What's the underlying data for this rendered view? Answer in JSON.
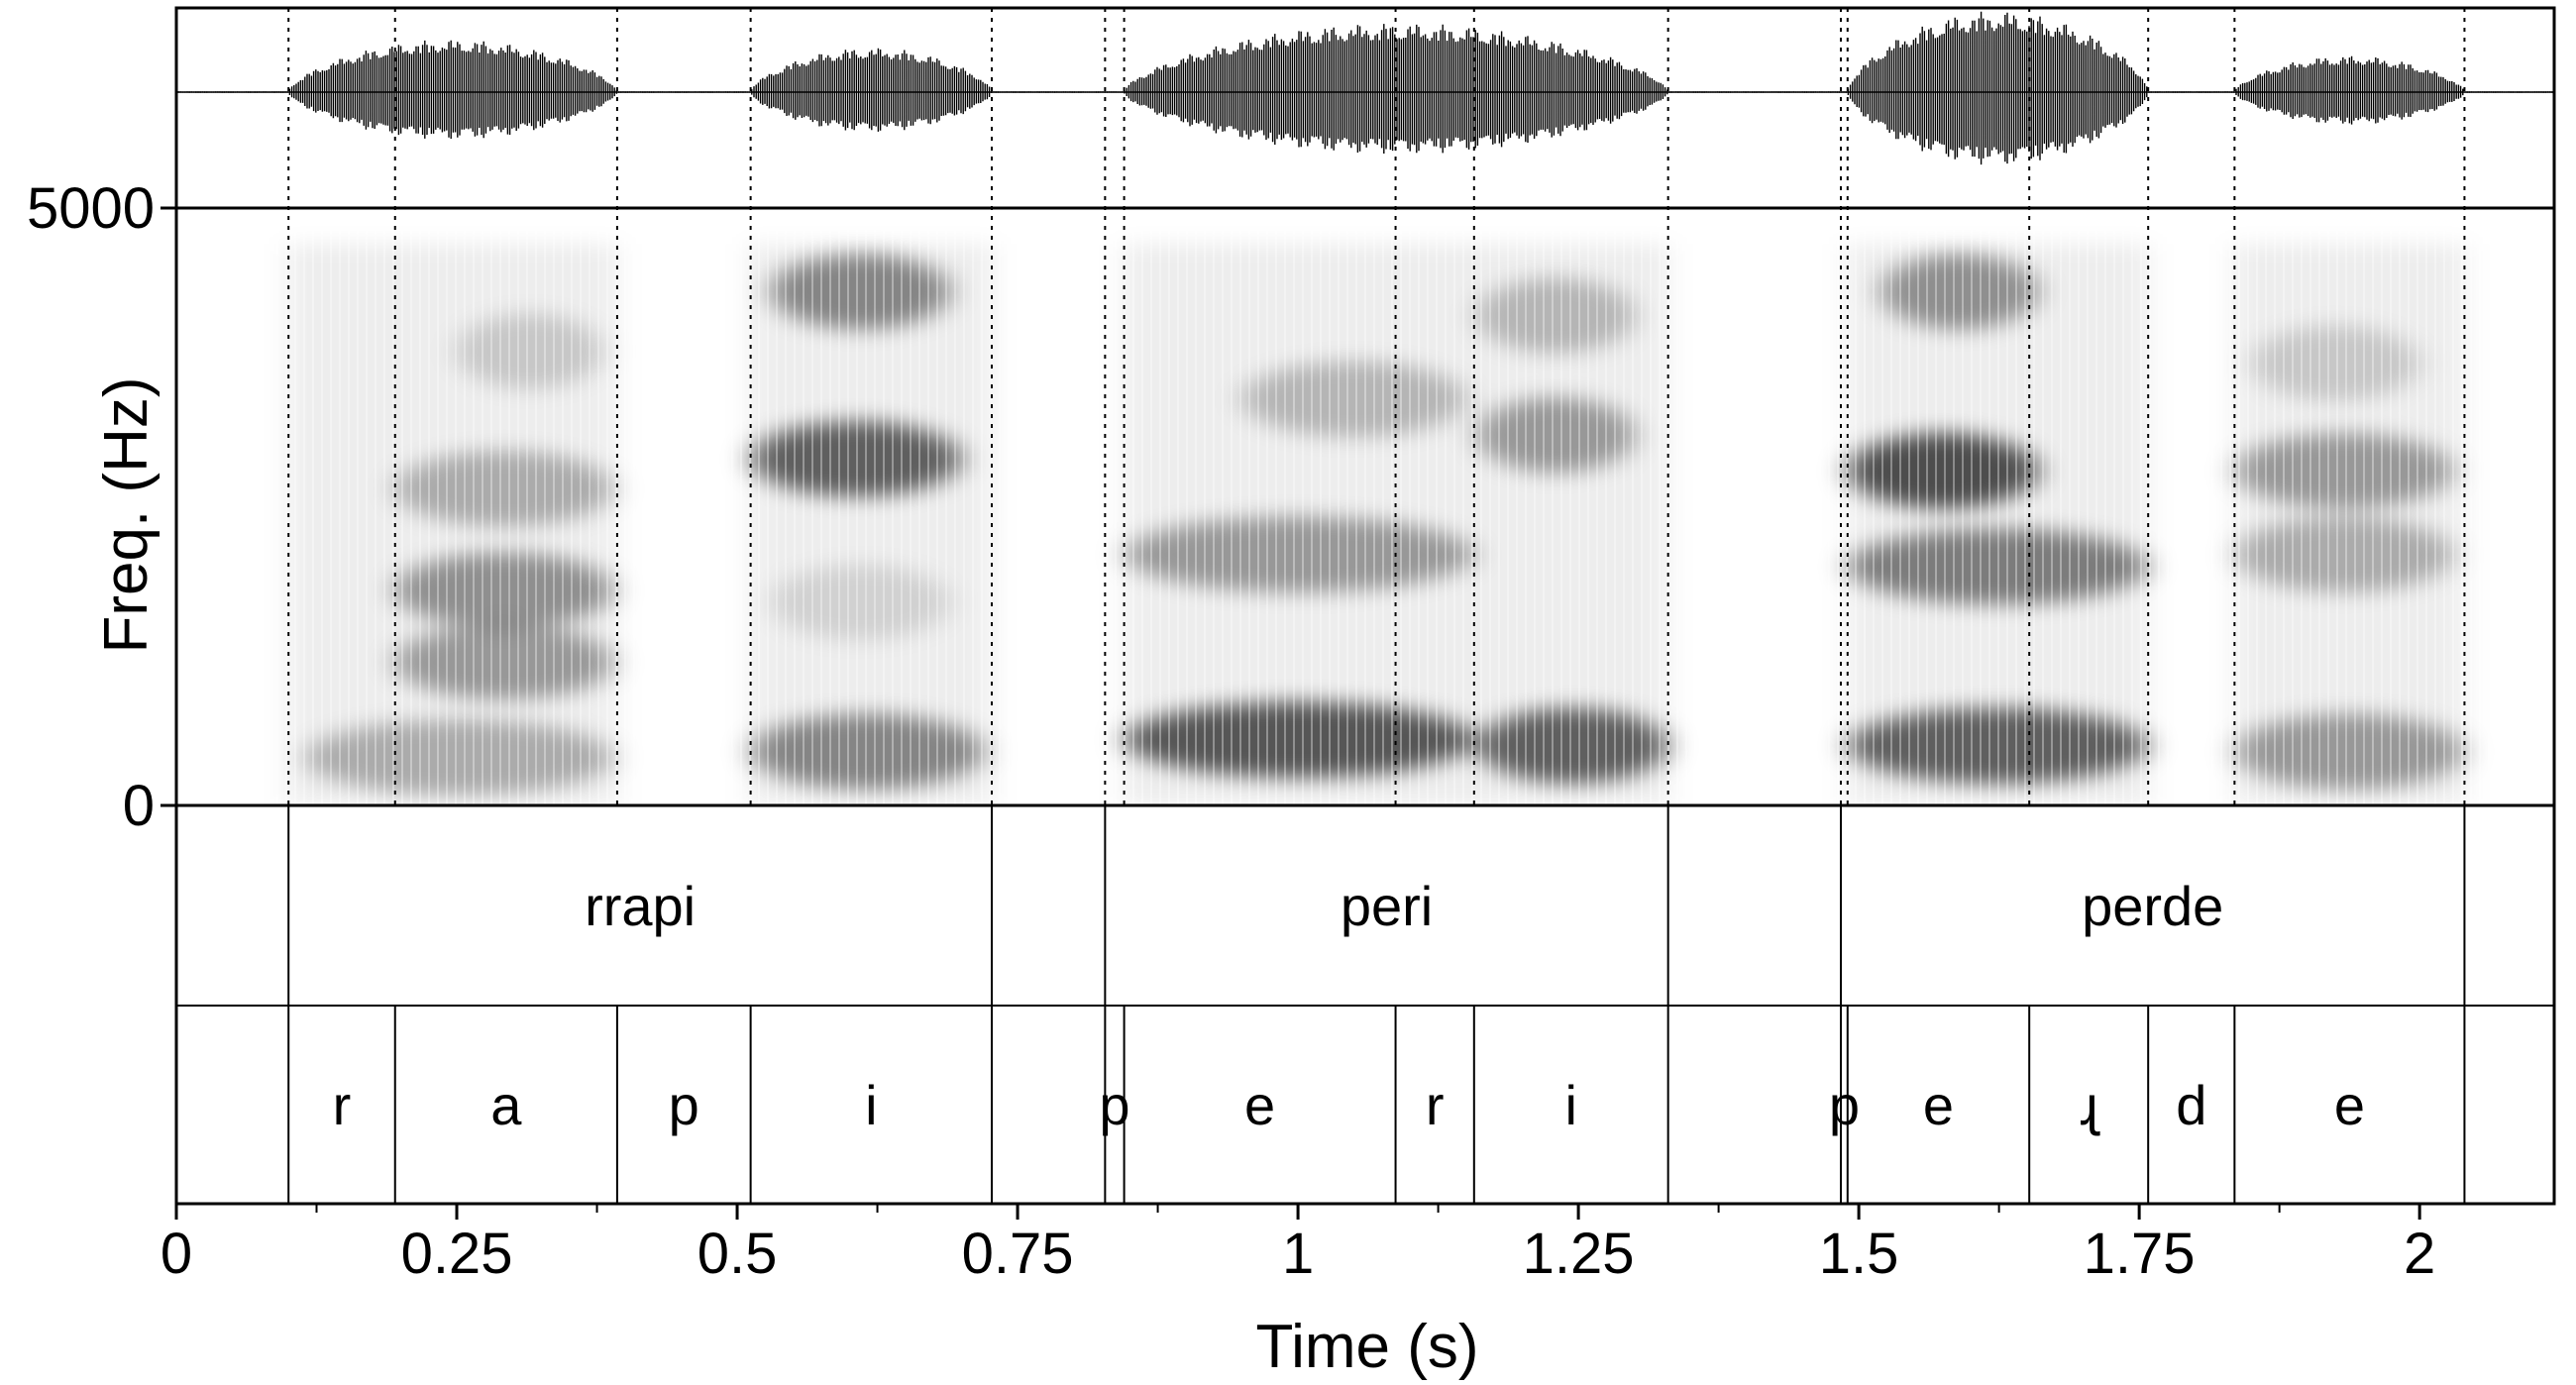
{
  "chart_data": {
    "type": "spectrogram",
    "xlabel": "Time (s)",
    "ylabel": "Freq. (Hz)",
    "xlim": [
      0,
      2.12
    ],
    "ylim": [
      0,
      5000
    ],
    "x_ticks": [
      0,
      0.25,
      0.5,
      0.75,
      1,
      1.25,
      1.5,
      1.75,
      2
    ],
    "x_tick_labels": [
      "0",
      "0.25",
      "0.5",
      "0.75",
      "1",
      "1.25",
      "1.5",
      "1.75",
      "2"
    ],
    "y_ticks": [
      0,
      5000
    ],
    "y_tick_labels": [
      "0",
      "5000"
    ],
    "words": [
      {
        "label": "rrapi",
        "start": 0.1,
        "end": 0.727
      },
      {
        "label": "peri",
        "start": 0.828,
        "end": 1.33
      },
      {
        "label": "perde",
        "start": 1.484,
        "end": 2.04
      }
    ],
    "word_boundaries": [
      0.1,
      0.727,
      0.828,
      1.33,
      1.484,
      2.04
    ],
    "segments": [
      {
        "label": "r",
        "start": 0.1,
        "end": 0.195
      },
      {
        "label": "a",
        "start": 0.195,
        "end": 0.393
      },
      {
        "label": "p",
        "start": 0.393,
        "end": 0.512
      },
      {
        "label": "i",
        "start": 0.512,
        "end": 0.727
      },
      {
        "label": "p",
        "start": 0.828,
        "end": 0.845
      },
      {
        "label": "e",
        "start": 0.845,
        "end": 1.087
      },
      {
        "label": "r",
        "start": 1.087,
        "end": 1.157
      },
      {
        "label": "i",
        "start": 1.157,
        "end": 1.33
      },
      {
        "label": "p",
        "start": 1.484,
        "end": 1.49
      },
      {
        "label": "e",
        "start": 1.49,
        "end": 1.652
      },
      {
        "label": "ɻ",
        "start": 1.652,
        "end": 1.758
      },
      {
        "label": "d",
        "start": 1.758,
        "end": 1.835
      },
      {
        "label": "e",
        "start": 1.835,
        "end": 2.04
      }
    ],
    "segment_boundaries": [
      0.1,
      0.195,
      0.393,
      0.512,
      0.727,
      0.828,
      0.845,
      1.087,
      1.157,
      1.33,
      1.484,
      1.49,
      1.652,
      1.758,
      1.835,
      2.04
    ],
    "voiced_regions": [
      {
        "start": 0.1,
        "end": 0.393,
        "amp": 0.65
      },
      {
        "start": 0.512,
        "end": 0.727,
        "amp": 0.55
      },
      {
        "start": 0.845,
        "end": 1.33,
        "amp": 0.85
      },
      {
        "start": 1.49,
        "end": 1.758,
        "amp": 1.0
      },
      {
        "start": 1.835,
        "end": 2.04,
        "amp": 0.45
      }
    ],
    "formant_bands": [
      {
        "start": 0.115,
        "end": 0.39,
        "freq": 400,
        "darkness": 0.35
      },
      {
        "start": 0.195,
        "end": 0.39,
        "freq": 1200,
        "darkness": 0.45
      },
      {
        "start": 0.195,
        "end": 0.39,
        "freq": 1800,
        "darkness": 0.5
      },
      {
        "start": 0.195,
        "end": 0.39,
        "freq": 2650,
        "darkness": 0.35
      },
      {
        "start": 0.25,
        "end": 0.38,
        "freq": 3800,
        "darkness": 0.2
      },
      {
        "start": 0.512,
        "end": 0.72,
        "freq": 450,
        "darkness": 0.55
      },
      {
        "start": 0.512,
        "end": 0.7,
        "freq": 2900,
        "darkness": 0.75
      },
      {
        "start": 0.53,
        "end": 0.69,
        "freq": 4300,
        "darkness": 0.55
      },
      {
        "start": 0.53,
        "end": 0.69,
        "freq": 1700,
        "darkness": 0.15
      },
      {
        "start": 0.845,
        "end": 1.157,
        "freq": 550,
        "darkness": 0.8
      },
      {
        "start": 0.845,
        "end": 1.157,
        "freq": 2100,
        "darkness": 0.45
      },
      {
        "start": 0.95,
        "end": 1.15,
        "freq": 3400,
        "darkness": 0.3
      },
      {
        "start": 1.16,
        "end": 1.33,
        "freq": 500,
        "darkness": 0.75
      },
      {
        "start": 1.16,
        "end": 1.3,
        "freq": 3100,
        "darkness": 0.45
      },
      {
        "start": 1.16,
        "end": 1.3,
        "freq": 4100,
        "darkness": 0.3
      },
      {
        "start": 1.49,
        "end": 1.758,
        "freq": 500,
        "darkness": 0.75
      },
      {
        "start": 1.49,
        "end": 1.66,
        "freq": 2800,
        "darkness": 0.85
      },
      {
        "start": 1.49,
        "end": 1.758,
        "freq": 2000,
        "darkness": 0.6
      },
      {
        "start": 1.52,
        "end": 1.66,
        "freq": 4300,
        "darkness": 0.5
      },
      {
        "start": 1.835,
        "end": 2.04,
        "freq": 450,
        "darkness": 0.45
      },
      {
        "start": 1.835,
        "end": 2.03,
        "freq": 2800,
        "darkness": 0.45
      },
      {
        "start": 1.835,
        "end": 2.03,
        "freq": 2100,
        "darkness": 0.35
      },
      {
        "start": 1.85,
        "end": 2.0,
        "freq": 3700,
        "darkness": 0.2
      }
    ]
  }
}
